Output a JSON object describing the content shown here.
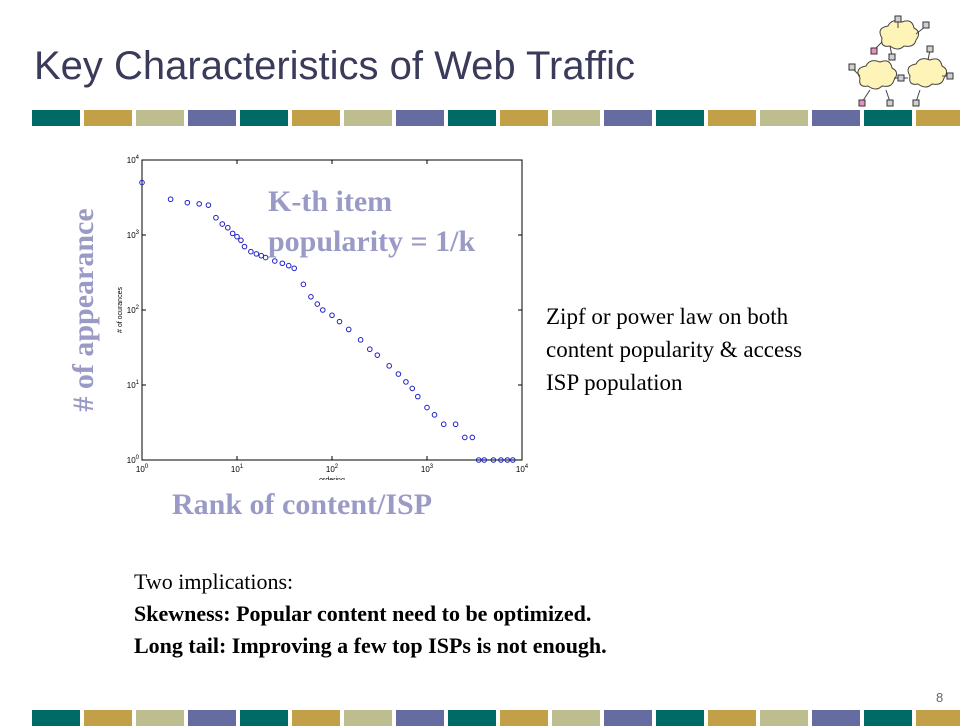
{
  "slide": {
    "title": "Key Characteristics of Web Traffic",
    "page_number": "8",
    "band_colors": [
      "#006b66",
      "#c1a048",
      "#bdbd8f",
      "#646ca0"
    ],
    "y_axis_label": "# of appearance",
    "x_axis_label": "Rank of content/ISP",
    "annotation": [
      "K-th item",
      "popularity = 1/k"
    ],
    "zipf_note": [
      "Zipf or power law on both",
      "content popularity & access",
      "ISP population"
    ],
    "implications": {
      "heading": "Two implications:",
      "skewness": "Skewness: Popular content need to be optimized.",
      "long_tail": "Long tail: Improving a few top ISPs is not enough."
    }
  },
  "chart_data": {
    "type": "scatter",
    "xlabel": "ordering",
    "ylabel": "# of ocurances",
    "xscale": "log",
    "yscale": "log",
    "xlim": [
      1,
      10000
    ],
    "ylim": [
      1,
      10000
    ],
    "xticks": [
      "10^0",
      "10^1",
      "10^2",
      "10^3",
      "10^4"
    ],
    "yticks": [
      "10^0",
      "10^1",
      "10^2",
      "10^3",
      "10^4"
    ],
    "marker": "open-circle",
    "color": "#2020c8",
    "series": [
      {
        "x": [
          1,
          2,
          3,
          4,
          5,
          6,
          7,
          8,
          9,
          10,
          11,
          12,
          14,
          16,
          18,
          20,
          25,
          30,
          35,
          40,
          50,
          60,
          70,
          80,
          100,
          120,
          150,
          200,
          250,
          300,
          400,
          500,
          600,
          700,
          800,
          1000,
          1200,
          1500,
          2000,
          2500,
          3000,
          3500,
          4000,
          5000,
          6000,
          7000,
          8000
        ],
        "y": [
          5000,
          3000,
          2700,
          2600,
          2500,
          1700,
          1400,
          1250,
          1050,
          950,
          850,
          700,
          600,
          560,
          530,
          500,
          450,
          420,
          390,
          360,
          220,
          150,
          120,
          100,
          85,
          70,
          55,
          40,
          30,
          25,
          18,
          14,
          11,
          9,
          7,
          5,
          4,
          3,
          3,
          2,
          2,
          1,
          1,
          1,
          1,
          1,
          1
        ]
      }
    ]
  }
}
